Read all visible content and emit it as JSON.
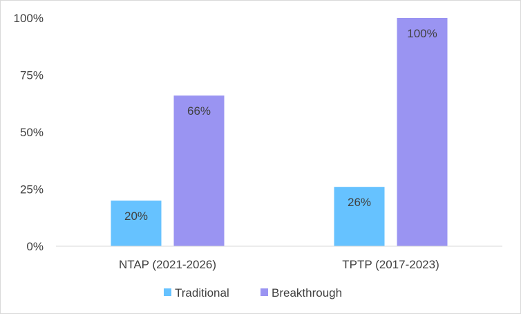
{
  "chart_data": {
    "type": "bar",
    "categories": [
      "NTAP (2021-2026)",
      "TPTP (2017-2023)"
    ],
    "series": [
      {
        "name": "Traditional",
        "values": [
          20,
          26
        ],
        "labels": [
          "20%",
          "26%"
        ],
        "color": "#66C2FF"
      },
      {
        "name": "Breakthrough",
        "values": [
          66,
          100
        ],
        "labels": [
          "66%",
          "100%"
        ],
        "color": "#9A94F2"
      }
    ],
    "ylim": [
      0,
      100
    ],
    "yticks": [
      0,
      25,
      50,
      75,
      100
    ],
    "ytick_labels": [
      "0%",
      "25%",
      "50%",
      "75%",
      "100%"
    ],
    "gridlines": false,
    "legend_position": "bottom"
  }
}
